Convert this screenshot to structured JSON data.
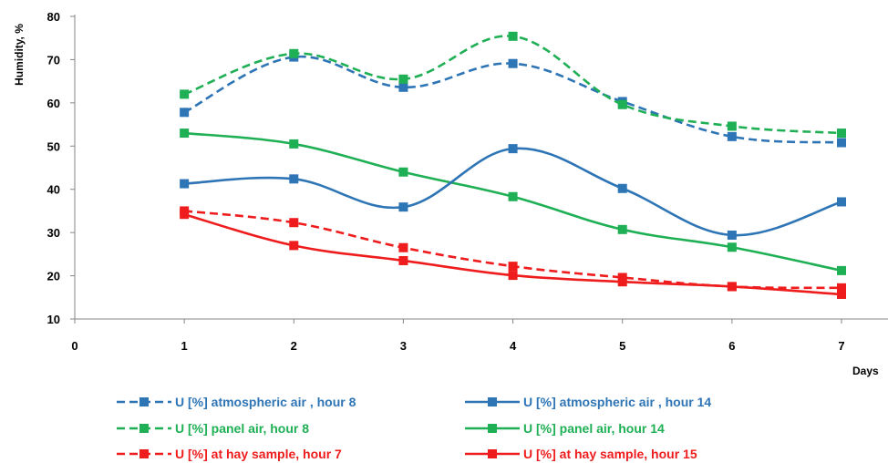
{
  "chart_data": {
    "type": "line",
    "title": "",
    "xlabel": "Days",
    "ylabel": "Humidity, %",
    "xlim": [
      0,
      7
    ],
    "ylim": [
      10,
      80
    ],
    "x_ticks": [
      0,
      1,
      2,
      3,
      4,
      5,
      6,
      7
    ],
    "y_ticks": [
      10,
      20,
      30,
      40,
      50,
      60,
      70,
      80
    ],
    "grid": false,
    "legend_position": "bottom",
    "x": [
      1,
      2,
      3,
      4,
      5,
      6,
      7
    ],
    "series": [
      {
        "name": "U [%] atmospheric air , hour 8",
        "values": [
          57.8,
          70.6,
          63.6,
          69.1,
          60.3,
          52.2,
          50.8
        ],
        "color": "#2E75B6",
        "dash": true
      },
      {
        "name": "U [%] atmospheric air , hour 14",
        "values": [
          41.3,
          42.4,
          35.9,
          49.4,
          40.2,
          29.4,
          37.1
        ],
        "color": "#2E75B6",
        "dash": false
      },
      {
        "name": "U [%] panel air, hour 8",
        "values": [
          62.0,
          71.4,
          65.5,
          75.4,
          59.6,
          54.6,
          53.0
        ],
        "color": "#1FAF54",
        "dash": true
      },
      {
        "name": "U [%] panel air, hour 14",
        "values": [
          53.0,
          50.5,
          44.0,
          38.3,
          30.7,
          26.6,
          21.2
        ],
        "color": "#1FAF54",
        "dash": false
      },
      {
        "name": "U [%] at hay sample, hour 7",
        "values": [
          35.0,
          32.3,
          26.5,
          22.2,
          19.6,
          17.5,
          17.2
        ],
        "color": "#EE1C1C",
        "dash": true
      },
      {
        "name": "U [%] at hay sample, hour 15",
        "values": [
          34.2,
          27.0,
          23.5,
          20.1,
          18.6,
          17.5,
          15.7
        ],
        "color": "#EE1C1C",
        "dash": false
      }
    ]
  }
}
